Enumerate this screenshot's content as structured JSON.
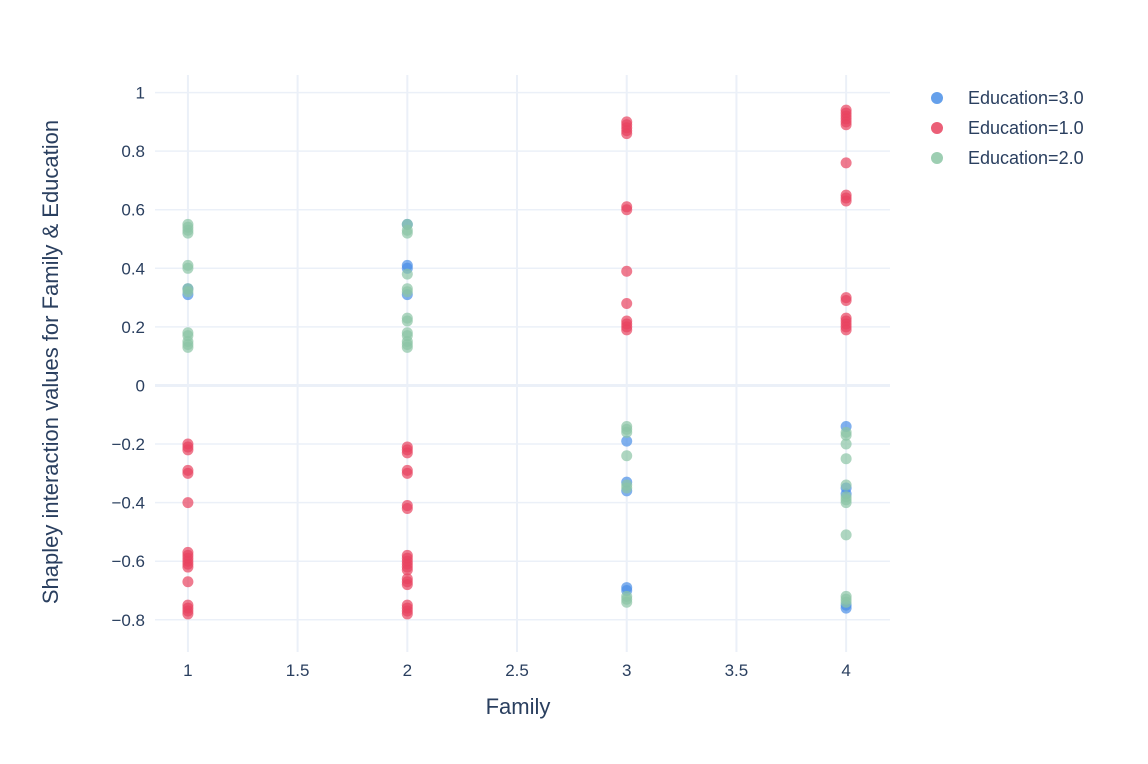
{
  "chart_data": {
    "type": "scatter",
    "xlabel": "Family",
    "ylabel": "Shapley interaction values for Family & Education",
    "xlim": [
      0.85,
      4.2
    ],
    "ylim": [
      -0.91,
      1.06
    ],
    "x_ticks": [
      1,
      1.5,
      2,
      2.5,
      3,
      3.5,
      4
    ],
    "x_tick_labels": [
      "1",
      "1.5",
      "2",
      "2.5",
      "3",
      "3.5",
      "4"
    ],
    "y_ticks": [
      -0.8,
      -0.6,
      -0.4,
      -0.2,
      0,
      0.2,
      0.4,
      0.6,
      0.8,
      1
    ],
    "y_tick_labels": [
      "−0.8",
      "−0.6",
      "−0.4",
      "−0.2",
      "0",
      "0.2",
      "0.4",
      "0.6",
      "0.8",
      "1"
    ],
    "grid": true,
    "legend_position": "top-right",
    "series": [
      {
        "name": "Education=3.0",
        "color": "#4a8fe7",
        "points": [
          [
            1,
            0.31
          ],
          [
            1,
            0.33
          ],
          [
            2,
            0.41
          ],
          [
            2,
            0.4
          ],
          [
            2,
            0.31
          ],
          [
            2,
            0.55
          ],
          [
            3,
            -0.19
          ],
          [
            3,
            -0.33
          ],
          [
            3,
            -0.36
          ],
          [
            3,
            -0.69
          ],
          [
            3,
            -0.7
          ],
          [
            4,
            -0.14
          ],
          [
            4,
            -0.35
          ],
          [
            4,
            -0.37
          ],
          [
            4,
            -0.75
          ],
          [
            4,
            -0.76
          ]
        ]
      },
      {
        "name": "Education=1.0",
        "color": "#e8435f",
        "points": [
          [
            1,
            -0.2
          ],
          [
            1,
            -0.21
          ],
          [
            1,
            -0.22
          ],
          [
            1,
            -0.29
          ],
          [
            1,
            -0.3
          ],
          [
            1,
            -0.4
          ],
          [
            1,
            -0.57
          ],
          [
            1,
            -0.58
          ],
          [
            1,
            -0.59
          ],
          [
            1,
            -0.6
          ],
          [
            1,
            -0.61
          ],
          [
            1,
            -0.62
          ],
          [
            1,
            -0.67
          ],
          [
            1,
            -0.75
          ],
          [
            1,
            -0.76
          ],
          [
            1,
            -0.77
          ],
          [
            1,
            -0.78
          ],
          [
            2,
            -0.21
          ],
          [
            2,
            -0.22
          ],
          [
            2,
            -0.23
          ],
          [
            2,
            -0.29
          ],
          [
            2,
            -0.3
          ],
          [
            2,
            -0.41
          ],
          [
            2,
            -0.42
          ],
          [
            2,
            -0.58
          ],
          [
            2,
            -0.59
          ],
          [
            2,
            -0.6
          ],
          [
            2,
            -0.61
          ],
          [
            2,
            -0.62
          ],
          [
            2,
            -0.63
          ],
          [
            2,
            -0.66
          ],
          [
            2,
            -0.67
          ],
          [
            2,
            -0.68
          ],
          [
            2,
            -0.75
          ],
          [
            2,
            -0.76
          ],
          [
            2,
            -0.77
          ],
          [
            2,
            -0.78
          ],
          [
            3,
            0.9
          ],
          [
            3,
            0.89
          ],
          [
            3,
            0.88
          ],
          [
            3,
            0.87
          ],
          [
            3,
            0.86
          ],
          [
            3,
            0.61
          ],
          [
            3,
            0.6
          ],
          [
            3,
            0.39
          ],
          [
            3,
            0.28
          ],
          [
            3,
            0.22
          ],
          [
            3,
            0.21
          ],
          [
            3,
            0.2
          ],
          [
            3,
            0.19
          ],
          [
            4,
            0.94
          ],
          [
            4,
            0.93
          ],
          [
            4,
            0.92
          ],
          [
            4,
            0.91
          ],
          [
            4,
            0.9
          ],
          [
            4,
            0.89
          ],
          [
            4,
            0.76
          ],
          [
            4,
            0.65
          ],
          [
            4,
            0.64
          ],
          [
            4,
            0.63
          ],
          [
            4,
            0.3
          ],
          [
            4,
            0.29
          ],
          [
            4,
            0.23
          ],
          [
            4,
            0.22
          ],
          [
            4,
            0.21
          ],
          [
            4,
            0.2
          ],
          [
            4,
            0.19
          ]
        ]
      },
      {
        "name": "Education=2.0",
        "color": "#8cc5a5",
        "points": [
          [
            1,
            0.55
          ],
          [
            1,
            0.54
          ],
          [
            1,
            0.53
          ],
          [
            1,
            0.52
          ],
          [
            1,
            0.41
          ],
          [
            1,
            0.4
          ],
          [
            1,
            0.33
          ],
          [
            1,
            0.32
          ],
          [
            1,
            0.18
          ],
          [
            1,
            0.17
          ],
          [
            1,
            0.15
          ],
          [
            1,
            0.14
          ],
          [
            1,
            0.13
          ],
          [
            2,
            0.55
          ],
          [
            2,
            0.53
          ],
          [
            2,
            0.52
          ],
          [
            2,
            0.38
          ],
          [
            2,
            0.33
          ],
          [
            2,
            0.32
          ],
          [
            2,
            0.23
          ],
          [
            2,
            0.22
          ],
          [
            2,
            0.18
          ],
          [
            2,
            0.17
          ],
          [
            2,
            0.15
          ],
          [
            2,
            0.14
          ],
          [
            2,
            0.13
          ],
          [
            3,
            -0.14
          ],
          [
            3,
            -0.15
          ],
          [
            3,
            -0.16
          ],
          [
            3,
            -0.24
          ],
          [
            3,
            -0.34
          ],
          [
            3,
            -0.35
          ],
          [
            3,
            -0.72
          ],
          [
            3,
            -0.73
          ],
          [
            3,
            -0.74
          ],
          [
            4,
            -0.16
          ],
          [
            4,
            -0.17
          ],
          [
            4,
            -0.2
          ],
          [
            4,
            -0.25
          ],
          [
            4,
            -0.34
          ],
          [
            4,
            -0.38
          ],
          [
            4,
            -0.39
          ],
          [
            4,
            -0.4
          ],
          [
            4,
            -0.51
          ],
          [
            4,
            -0.72
          ],
          [
            4,
            -0.73
          ],
          [
            4,
            -0.74
          ]
        ]
      }
    ]
  }
}
